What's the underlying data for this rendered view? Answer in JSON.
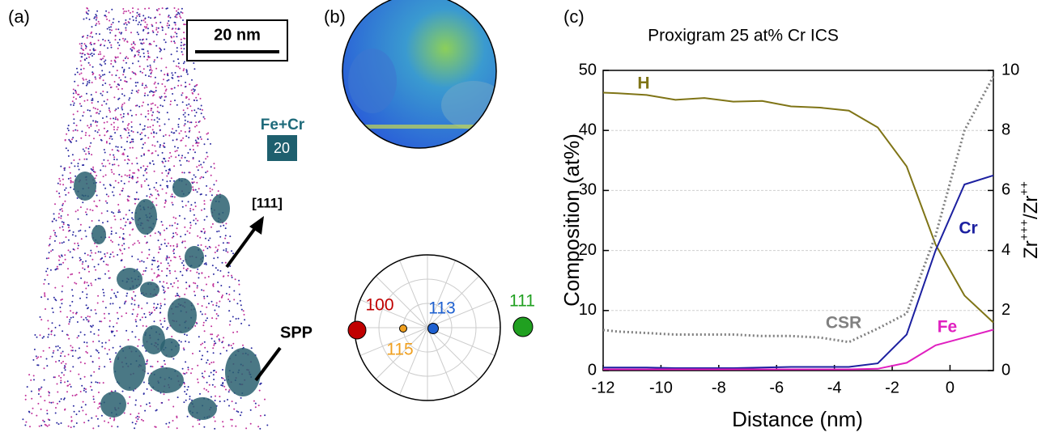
{
  "panels": {
    "a": {
      "label": "(a)",
      "scale_bar": "20 nm",
      "species": "Fe+Cr",
      "iso_value": "20",
      "direction": "[111]",
      "feature": "SPP"
    },
    "b": {
      "label": "(b)",
      "poles": [
        "100",
        "115",
        "113",
        "111"
      ]
    },
    "c": {
      "label": "(c)"
    }
  },
  "chart_data": {
    "type": "line",
    "title": "Proxigram 25 at% Cr ICS",
    "xlabel": "Distance (nm)",
    "ylabel": "Composition (at%)",
    "y2label": [
      "Zr",
      "+++",
      "/Zr",
      "++"
    ],
    "x": [
      -12,
      -11.5,
      -10.5,
      -9.5,
      -8.5,
      -7.5,
      -6.5,
      -5.5,
      -4.5,
      -3.5,
      -2.5,
      -1.5,
      -0.5,
      0.5,
      1.5
    ],
    "series": [
      {
        "name": "H",
        "color": "#7f7416",
        "values": [
          46.3,
          46.2,
          45.9,
          45.1,
          45.4,
          44.8,
          44.9,
          44.0,
          43.8,
          43.3,
          40.5,
          34.0,
          21.0,
          12.5,
          8.0
        ]
      },
      {
        "name": "Cr",
        "color": "#1c20a0",
        "values": [
          0.5,
          0.5,
          0.5,
          0.4,
          0.4,
          0.4,
          0.5,
          0.6,
          0.6,
          0.6,
          1.2,
          6.0,
          20.0,
          31.0,
          32.5
        ]
      },
      {
        "name": "Fe",
        "color": "#e020c0",
        "values": [
          0.2,
          0.2,
          0.2,
          0.2,
          0.2,
          0.2,
          0.2,
          0.2,
          0.2,
          0.2,
          0.3,
          1.3,
          4.2,
          5.5,
          6.8
        ]
      },
      {
        "name": "CSR",
        "color": "#808080",
        "axis": "y2",
        "dashed": true,
        "values": [
          1.35,
          1.3,
          1.25,
          1.2,
          1.2,
          1.2,
          1.15,
          1.15,
          1.1,
          0.95,
          1.4,
          1.9,
          4.5,
          8.0,
          9.8
        ]
      }
    ],
    "xlim": [
      -12,
      1.5
    ],
    "xticks": [
      -12,
      -10,
      -8,
      -6,
      -4,
      -2,
      0
    ],
    "ylim": [
      0,
      50
    ],
    "yticks": [
      0,
      10,
      20,
      30,
      40,
      50
    ],
    "y2lim": [
      0,
      10
    ],
    "y2ticks": [
      0,
      2,
      4,
      6,
      8,
      10
    ],
    "grid": true
  }
}
